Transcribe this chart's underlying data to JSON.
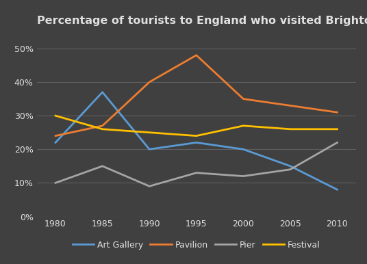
{
  "title": "Percentage of tourists to England who visited Brighton attractions",
  "years": [
    1980,
    1985,
    1990,
    1995,
    2000,
    2005,
    2010
  ],
  "series": {
    "Art Gallery": {
      "values": [
        22,
        37,
        20,
        22,
        20,
        15,
        8
      ],
      "color": "#5B9BD5",
      "marker": "none"
    },
    "Pavilion": {
      "values": [
        24,
        27,
        40,
        48,
        35,
        33,
        31
      ],
      "color": "#ED7D31",
      "marker": "none"
    },
    "Pier": {
      "values": [
        10,
        15,
        9,
        13,
        12,
        14,
        22
      ],
      "color": "#A5A5A5",
      "marker": "none"
    },
    "Festival": {
      "values": [
        30,
        26,
        25,
        24,
        27,
        26,
        26
      ],
      "color": "#FFC000",
      "marker": "none"
    }
  },
  "ylim": [
    0,
    55
  ],
  "yticks": [
    0,
    10,
    20,
    30,
    40,
    50
  ],
  "xlim": [
    1978,
    2012
  ],
  "background_color": "#404040",
  "grid_color": "#606060",
  "text_color": "#e0e0e0",
  "title_fontsize": 11.5,
  "legend_fontsize": 9,
  "tick_fontsize": 9,
  "linewidth": 2.0
}
